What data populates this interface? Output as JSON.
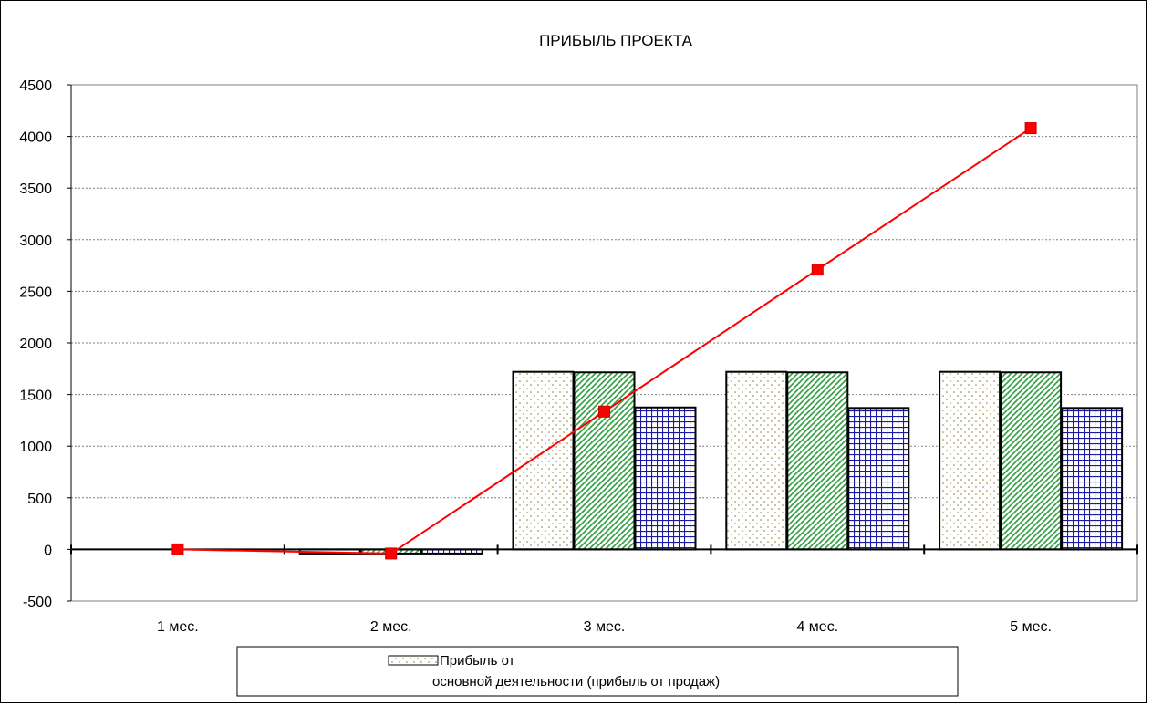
{
  "chart_data": {
    "type": "bar",
    "title": "ПРИБЫЛЬ ПРОЕКТА",
    "xlabel": "",
    "ylabel": "",
    "categories": [
      "1 мес.",
      "2 мес.",
      "3 мес.",
      "4 мес.",
      "5 мес."
    ],
    "ylim": [
      -500,
      4500
    ],
    "yticks": [
      -500,
      0,
      500,
      1000,
      1500,
      2000,
      2500,
      3000,
      3500,
      4000,
      4500
    ],
    "grid": true,
    "legend_placement": "bottom",
    "series": [
      {
        "name": "Прибыль от основной деятельности (прибыль от продаж)",
        "kind": "bar",
        "pattern": "dots",
        "color": "#8b7d2e",
        "values": [
          0,
          -40,
          1720,
          1720,
          1720
        ]
      },
      {
        "kind": "bar",
        "pattern": "diagonal",
        "color": "#2e9e3e",
        "values": [
          0,
          -40,
          1715,
          1715,
          1715
        ]
      },
      {
        "kind": "bar",
        "pattern": "grid",
        "color": "#1a1aa0",
        "values": [
          0,
          -40,
          1375,
          1370,
          1370
        ]
      },
      {
        "kind": "line",
        "color": "#ff0000",
        "values": [
          0,
          -40,
          1335,
          2710,
          4080
        ]
      }
    ]
  },
  "legend": {
    "line1": "Прибыль от",
    "line2": "основной деятельности (прибыль от продаж)"
  }
}
